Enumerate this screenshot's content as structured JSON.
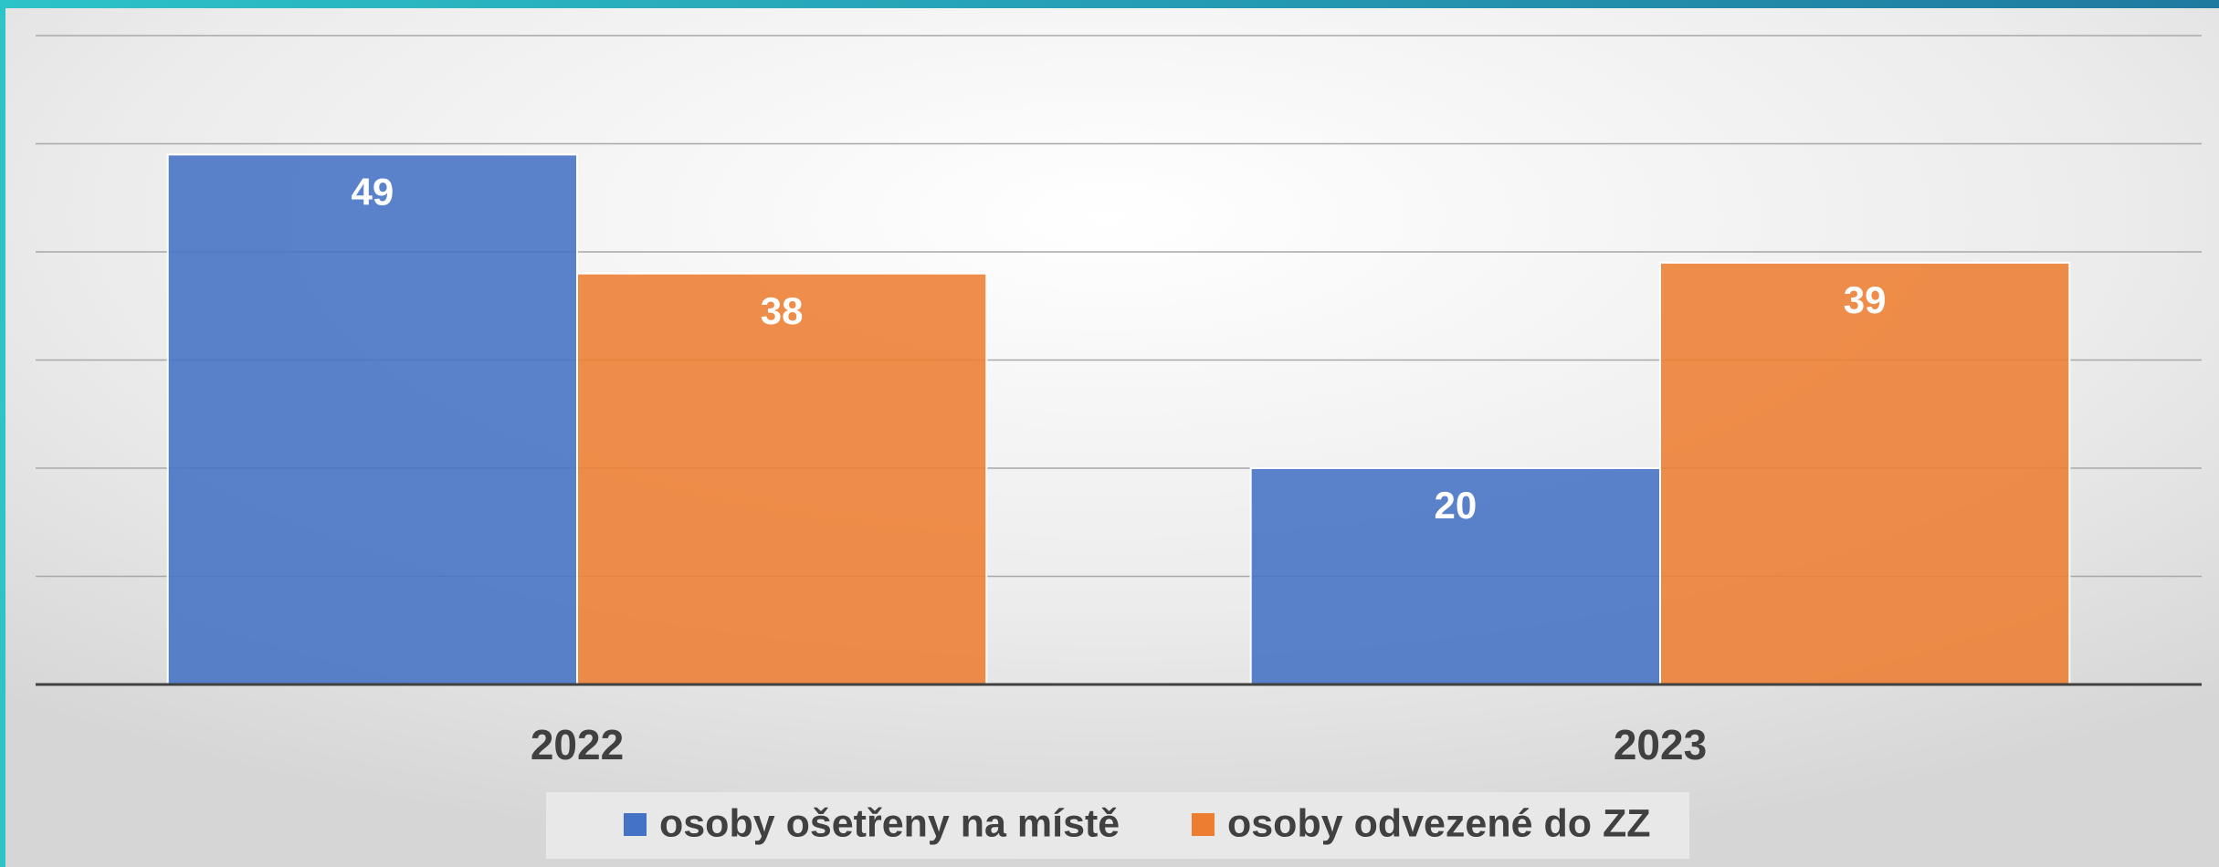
{
  "chart_data": {
    "type": "bar",
    "categories": [
      "2022",
      "2023"
    ],
    "series": [
      {
        "name": "osoby ošetřeny na místě",
        "color": "#4472c4",
        "values": [
          49,
          20
        ]
      },
      {
        "name": "osoby odvezené do ZZ",
        "color": "#ed7d31",
        "values": [
          38,
          39
        ]
      }
    ],
    "ylim": [
      0,
      60
    ],
    "yticks": [
      0,
      10,
      20,
      30,
      40,
      50,
      60
    ],
    "grid": true,
    "legend": "bottom"
  }
}
